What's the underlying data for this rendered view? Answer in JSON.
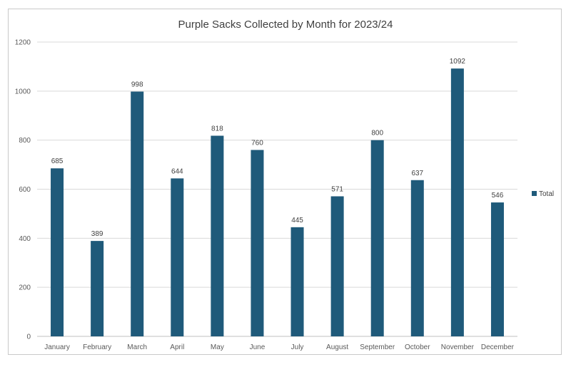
{
  "chart_data": {
    "type": "bar",
    "title": "Purple Sacks Collected by Month for 2023/24",
    "xlabel": "",
    "ylabel": "",
    "categories": [
      "January",
      "February",
      "March",
      "April",
      "May",
      "June",
      "July",
      "August",
      "September",
      "October",
      "November",
      "December"
    ],
    "series": [
      {
        "name": "Total",
        "values": [
          685,
          389,
          998,
          644,
          818,
          760,
          445,
          571,
          800,
          637,
          1092,
          546
        ]
      }
    ],
    "ylim": [
      0,
      1200
    ],
    "yticks": [
      0,
      200,
      400,
      600,
      800,
      1000,
      1200
    ],
    "grid": true,
    "legend_position": "right",
    "colors": {
      "bar": "#1f5a7a",
      "grid": "#d9d9d9",
      "axis": "#bfbfbf"
    }
  }
}
